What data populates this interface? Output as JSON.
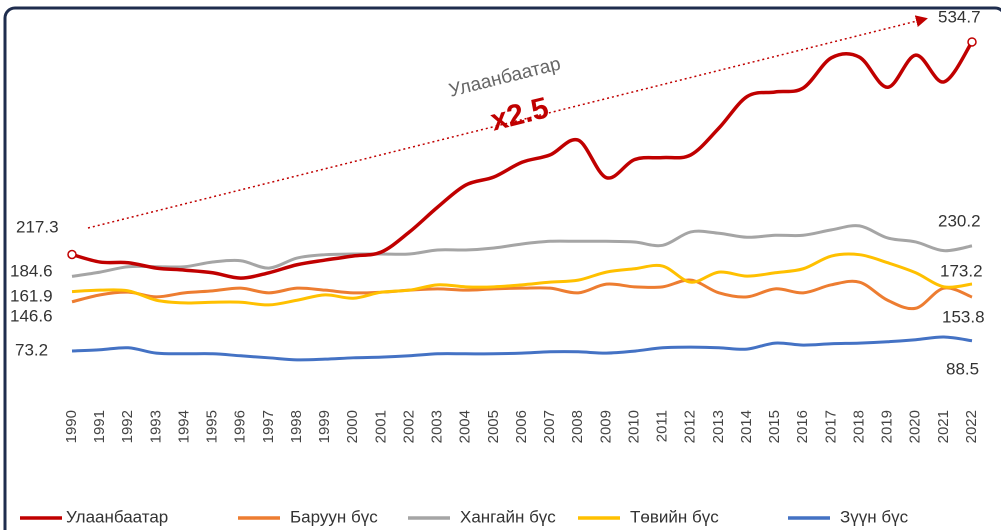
{
  "chart_data": {
    "type": "line",
    "annotations": [
      "Улаанбаатар",
      "x2.5"
    ],
    "categories": [
      "1990",
      "1991",
      "1992",
      "1993",
      "1994",
      "1995",
      "1996",
      "1997",
      "1998",
      "1999",
      "2000",
      "2001",
      "2002",
      "2003",
      "2004",
      "2005",
      "2006",
      "2007",
      "2008",
      "2009",
      "2010",
      "2011",
      "2012",
      "2013",
      "2014",
      "2015",
      "2016",
      "2017",
      "2018",
      "2019",
      "2020",
      "2021",
      "2022"
    ],
    "ylim": [
      0,
      560
    ],
    "series": [
      {
        "name": "Улаанбаатар",
        "color": "#c00000",
        "values": [
          217.3,
          206,
          205,
          197,
          194,
          190,
          182,
          190,
          202,
          209,
          215,
          221,
          251,
          288,
          321,
          333,
          355,
          366,
          388,
          332,
          359,
          362,
          366,
          406,
          453,
          460,
          466,
          511,
          512,
          467,
          515,
          475,
          534.7
        ]
      },
      {
        "name": "Баруун бүс",
        "color": "#ed7d31",
        "values": [
          146.6,
          157,
          161,
          154,
          160,
          163,
          167,
          160,
          167,
          164,
          160,
          161,
          164,
          166,
          164,
          166,
          167,
          167,
          160,
          173,
          169,
          169,
          179,
          160,
          154,
          166,
          160,
          172,
          176,
          149,
          137,
          167,
          153.8
        ]
      },
      {
        "name": "Хангайн бүс",
        "color": "#a5a5a5",
        "values": [
          184.6,
          191,
          199,
          199,
          199,
          206,
          208,
          197,
          212,
          217,
          218,
          218,
          218,
          224,
          224,
          227,
          233,
          237,
          237,
          237,
          236,
          231,
          251,
          249,
          243,
          246,
          246,
          254,
          260,
          242,
          236,
          223,
          230.2
        ]
      },
      {
        "name": "Төвийн бүс",
        "color": "#ffc000",
        "values": [
          161.9,
          164,
          163,
          149,
          145,
          146,
          146,
          142,
          149,
          157,
          152,
          161,
          164,
          172,
          169,
          169,
          172,
          176,
          179,
          191,
          196,
          200,
          176,
          191,
          185,
          190,
          196,
          215,
          217,
          205,
          190,
          169,
          173.2
        ]
      },
      {
        "name": "Зүүн бүс",
        "color": "#4472c4",
        "values": [
          73.2,
          75,
          78,
          70,
          69,
          69,
          66,
          63,
          60,
          61,
          63,
          64,
          66,
          69,
          69,
          69,
          70,
          72,
          72,
          70,
          73,
          78,
          79,
          78,
          76,
          85,
          82,
          84,
          85,
          87,
          90,
          94,
          88.5
        ]
      }
    ]
  }
}
